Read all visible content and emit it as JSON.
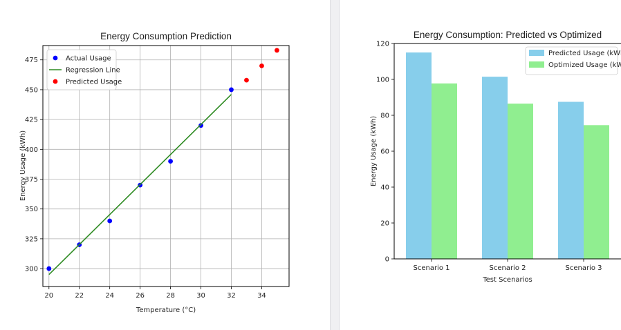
{
  "chart_data": [
    {
      "type": "scatter",
      "title": "Energy Consumption Prediction",
      "xlabel": "Temperature (°C)",
      "ylabel": "Energy Usage (kWh)",
      "xlim": [
        19.6,
        35.8
      ],
      "ylim": [
        285,
        487
      ],
      "xticks": [
        20,
        22,
        24,
        26,
        28,
        30,
        32,
        34
      ],
      "yticks": [
        300,
        325,
        350,
        375,
        400,
        425,
        450,
        475
      ],
      "grid": true,
      "legend": "top-left",
      "series": [
        {
          "name": "Actual Usage",
          "kind": "scatter",
          "color": "#0000ff",
          "x": [
            20,
            22,
            24,
            26,
            28,
            30,
            32
          ],
          "y": [
            300,
            320,
            340,
            370,
            390,
            420,
            450
          ]
        },
        {
          "name": "Regression Line",
          "kind": "line",
          "color": "#2e8b22",
          "x": [
            20,
            32
          ],
          "y": [
            295,
            446
          ]
        },
        {
          "name": "Predicted Usage",
          "kind": "scatter",
          "color": "#ff0000",
          "x": [
            33,
            34,
            35
          ],
          "y": [
            458,
            470,
            483
          ]
        }
      ]
    },
    {
      "type": "bar",
      "title": "Energy Consumption: Predicted vs Optimized",
      "xlabel": "Test Scenarios",
      "ylabel": "Energy Usage (kWh)",
      "ylim": [
        0,
        120
      ],
      "yticks": [
        0,
        20,
        40,
        60,
        80,
        100,
        120
      ],
      "categories": [
        "Scenario 1",
        "Scenario 2",
        "Scenario 3"
      ],
      "grid": false,
      "legend": "top-right",
      "series": [
        {
          "name": "Predicted Usage (kWh)",
          "color": "#87ceeb",
          "values": [
            115,
            101.5,
            87.5
          ]
        },
        {
          "name": "Optimized Usage (kWh)",
          "color": "#90ee90",
          "values": [
            97.75,
            86.5,
            74.5
          ]
        }
      ]
    }
  ]
}
